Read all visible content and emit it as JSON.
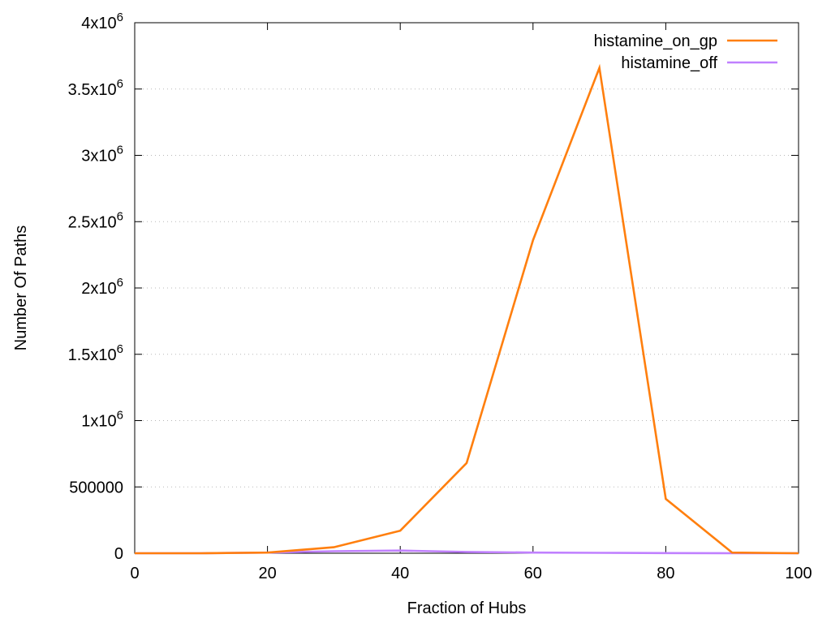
{
  "chart_data": {
    "type": "line",
    "title": "",
    "xlabel": "Fraction of Hubs",
    "ylabel": "Number Of Paths",
    "xlim": [
      0,
      100
    ],
    "ylim": [
      0,
      4000000
    ],
    "xticks": [
      0,
      20,
      40,
      60,
      80,
      100
    ],
    "xtick_labels": [
      "0",
      "20",
      "40",
      "60",
      "80",
      "100"
    ],
    "yticks": [
      0,
      500000,
      1000000,
      1500000,
      2000000,
      2500000,
      3000000,
      3500000,
      4000000
    ],
    "ytick_labels": [
      {
        "base": "0",
        "exp": ""
      },
      {
        "base": "500000",
        "exp": ""
      },
      {
        "base": "1x10",
        "exp": "6"
      },
      {
        "base": "1.5x10",
        "exp": "6"
      },
      {
        "base": "2x10",
        "exp": "6"
      },
      {
        "base": "2.5x10",
        "exp": "6"
      },
      {
        "base": "3x10",
        "exp": "6"
      },
      {
        "base": "3.5x10",
        "exp": "6"
      },
      {
        "base": "4x10",
        "exp": "6"
      }
    ],
    "grid": "horizontal-dotted",
    "legend_position": "top-right",
    "series": [
      {
        "name": "histamine_on_gp",
        "color": "#ff7f0e",
        "x": [
          0,
          10,
          20,
          30,
          40,
          50,
          60,
          70,
          80,
          90,
          100
        ],
        "y": [
          0,
          0,
          5000,
          45000,
          170000,
          680000,
          2360000,
          3660000,
          410000,
          5000,
          0
        ]
      },
      {
        "name": "histamine_off",
        "color": "#c080ff",
        "x": [
          0,
          10,
          20,
          30,
          40,
          50,
          60,
          70,
          80,
          90,
          100
        ],
        "y": [
          0,
          0,
          5000,
          15000,
          20000,
          10000,
          5000,
          3000,
          1000,
          0,
          0
        ]
      }
    ]
  }
}
